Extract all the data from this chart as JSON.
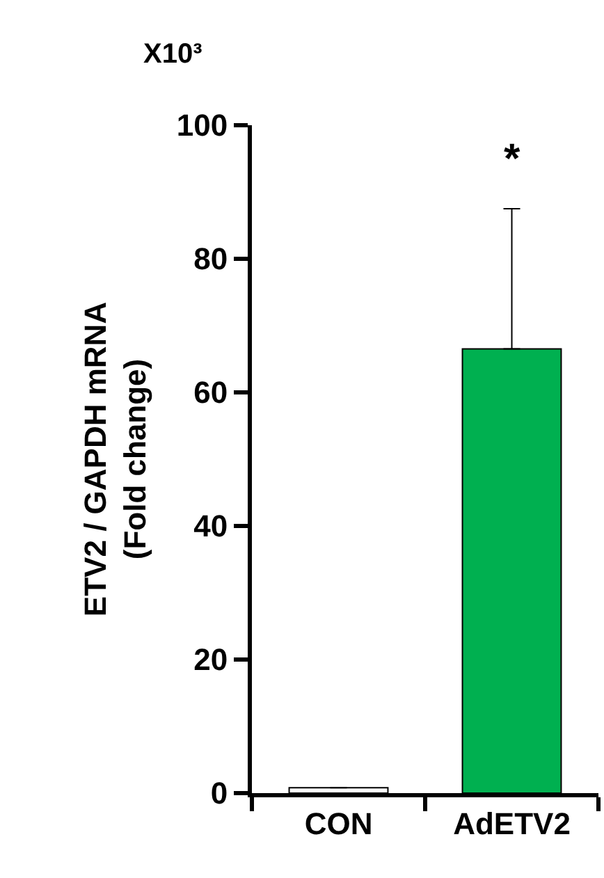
{
  "chart_data": {
    "type": "bar",
    "ylabel": "ETV2 / GAPDH mRNA\n(Fold change)",
    "categories": [
      "CON",
      "AdETV2"
    ],
    "values": [
      0.8,
      66.5
    ],
    "colors": [
      "#ffffff",
      "#00b050"
    ],
    "errors": [
      null,
      [
        66.5,
        87.5
      ]
    ],
    "ylim": [
      0,
      100
    ],
    "yticks": [
      0,
      20,
      40,
      60,
      80,
      100
    ],
    "grid": false,
    "annotations": [
      "X10³",
      "*"
    ]
  }
}
